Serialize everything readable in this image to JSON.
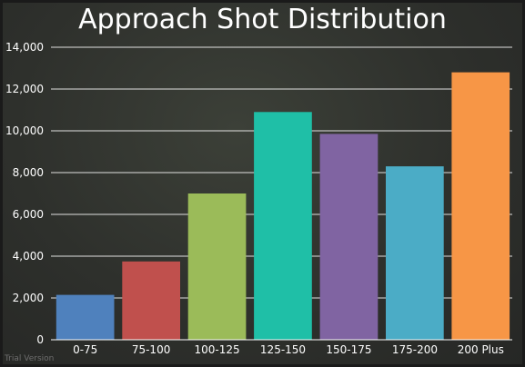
{
  "title": "Approach Shot Distribution",
  "watermark": "Trial Version",
  "chart_data": {
    "type": "bar",
    "title": "Approach Shot Distribution",
    "xlabel": "",
    "ylabel": "",
    "categories": [
      "0-75",
      "75-100",
      "100-125",
      "125-150",
      "150-175",
      "175-200",
      "200 Plus"
    ],
    "values": [
      2150,
      3750,
      7000,
      10900,
      9850,
      8300,
      12800
    ],
    "colors": [
      "#4f81bd",
      "#c0504d",
      "#9bbb59",
      "#1fbfa7",
      "#8064a2",
      "#4bacc6",
      "#f79646"
    ],
    "ylim": [
      0,
      14000
    ],
    "yticks": [
      "0",
      "2,000",
      "4,000",
      "6,000",
      "8,000",
      "10,000",
      "12,000",
      "14,000"
    ],
    "ytick_values": [
      0,
      2000,
      4000,
      6000,
      8000,
      10000,
      12000,
      14000
    ],
    "grid": true,
    "legend": "none"
  }
}
